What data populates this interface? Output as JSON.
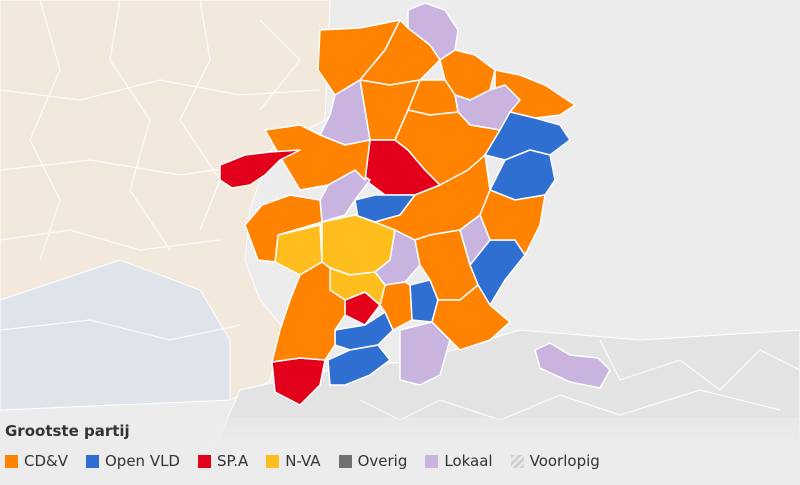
{
  "legend": {
    "title": "Grootste partij",
    "items": [
      {
        "key": "cdv",
        "label": "CD&V",
        "color": "#ff8200"
      },
      {
        "key": "openvld",
        "label": "Open VLD",
        "color": "#2f6fd1"
      },
      {
        "key": "spa",
        "label": "SP.A",
        "color": "#e3001b"
      },
      {
        "key": "nva",
        "label": "N-VA",
        "color": "#ffbe1e"
      },
      {
        "key": "overig",
        "label": "Overig",
        "color": "#707070"
      },
      {
        "key": "lokaal",
        "label": "Lokaal",
        "color": "#c8b4de"
      },
      {
        "key": "voorlopig",
        "label": "Voorlopig",
        "color": "#d2d2d2",
        "pattern": "hatched"
      }
    ]
  },
  "colors": {
    "background": "#ececec",
    "neighbor_region_fill": "#f2e9dc",
    "neighbor_region_fill_2": "#dfe3ea",
    "outside_fill": "#e6e6e6",
    "border": "#ffffff"
  },
  "map": {
    "municipalities": [
      {
        "party": "cdv"
      },
      {
        "party": "cdv"
      },
      {
        "party": "lokaal"
      },
      {
        "party": "cdv"
      },
      {
        "party": "cdv"
      },
      {
        "party": "lokaal"
      },
      {
        "party": "cdv"
      },
      {
        "party": "cdv"
      },
      {
        "party": "spa"
      },
      {
        "party": "cdv"
      },
      {
        "party": "openvld"
      },
      {
        "party": "openvld"
      },
      {
        "party": "lokaal"
      },
      {
        "party": "openvld"
      },
      {
        "party": "nva"
      },
      {
        "party": "nva"
      },
      {
        "party": "lokaal"
      },
      {
        "party": "cdv"
      },
      {
        "party": "openvld"
      },
      {
        "party": "spa"
      },
      {
        "party": "openvld"
      },
      {
        "party": "openvld"
      },
      {
        "party": "lokaal"
      },
      {
        "party": "spa"
      },
      {
        "party": "lokaal"
      },
      {
        "party": "cdv"
      },
      {
        "party": "lokaal"
      }
    ]
  }
}
